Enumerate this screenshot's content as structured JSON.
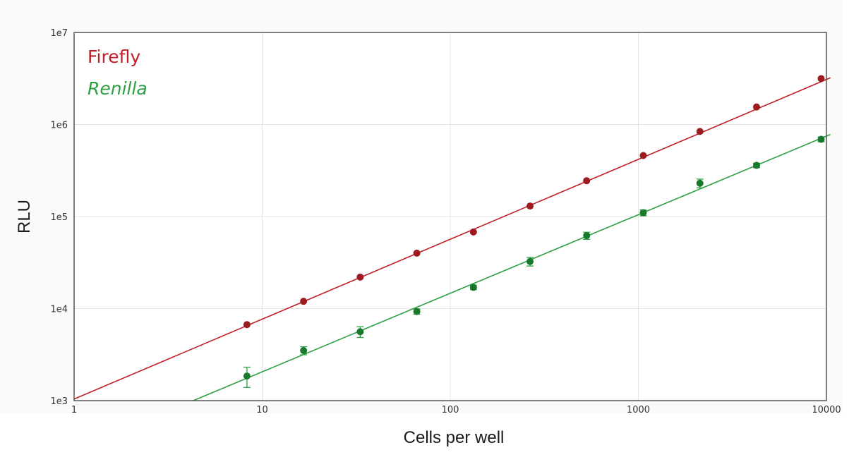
{
  "chart_data": {
    "type": "scatter",
    "title": "",
    "xlabel": "Cells per well",
    "ylabel": "RLU",
    "x_scale": "log",
    "y_scale": "log",
    "xlim": [
      1,
      10000
    ],
    "ylim": [
      1000,
      10000000
    ],
    "grid": true,
    "legend_position": "top-left",
    "x_ticks": [
      {
        "value": 1,
        "label": "1"
      },
      {
        "value": 10,
        "label": "10"
      },
      {
        "value": 100,
        "label": "100"
      },
      {
        "value": 1000,
        "label": "1000"
      },
      {
        "value": 10000,
        "label": "10000"
      }
    ],
    "y_ticks": [
      {
        "value": 1000,
        "label": "1e3"
      },
      {
        "value": 10000,
        "label": "1e4"
      },
      {
        "value": 100000,
        "label": "1e5"
      },
      {
        "value": 1000000,
        "label": "1e6"
      },
      {
        "value": 10000000,
        "label": "1e7"
      }
    ],
    "series": [
      {
        "name": "Firefly",
        "color": "#c01f27",
        "marker_color": "#9b1b1f",
        "italic": false,
        "x": [
          8.3,
          16.6,
          33.2,
          66.4,
          132.8,
          265.6,
          531,
          1062,
          2125,
          4250,
          9375
        ],
        "y": [
          6700,
          12000,
          22000,
          40000,
          68000,
          130000,
          245000,
          460000,
          840000,
          1550000,
          3150000
        ],
        "err": [
          0,
          0,
          0,
          0,
          0,
          0,
          0,
          0,
          0,
          0,
          0
        ],
        "fit": {
          "x": [
            1,
            10500
          ],
          "y": [
            1040,
            3220000
          ]
        }
      },
      {
        "name": "Renilla",
        "color": "#2ea043",
        "marker_color": "#177a2b",
        "italic": true,
        "x": [
          8.3,
          16.6,
          33.2,
          66.4,
          132.8,
          265.6,
          531,
          1062,
          2125,
          4250,
          9375
        ],
        "y": [
          1850,
          3500,
          5600,
          9300,
          17000,
          32500,
          62000,
          110000,
          230000,
          360000,
          690000
        ],
        "err": [
          460,
          350,
          750,
          600,
          900,
          3500,
          5500,
          8000,
          25000,
          20000,
          40000
        ],
        "fit": {
          "x": [
            4.3,
            10500
          ],
          "y": [
            1000,
            780000
          ]
        }
      }
    ]
  }
}
